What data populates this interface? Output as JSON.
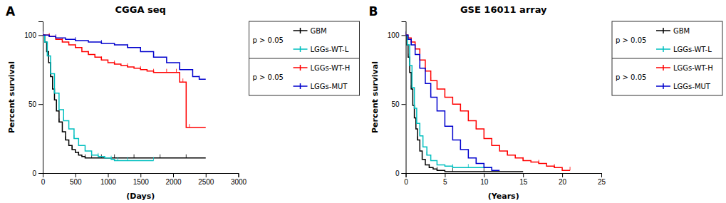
{
  "chart_data": [
    {
      "type": "step",
      "title": "CGGA seq",
      "xlabel": "(Days)",
      "ylabel": "Percent survival",
      "xlim": [
        0,
        3000
      ],
      "ylim": [
        0,
        110
      ],
      "xticks": [
        0,
        500,
        1000,
        1500,
        2000,
        2500,
        3000
      ],
      "yticks": [
        0,
        50,
        100
      ],
      "grid": false,
      "legend": "right",
      "marker": "tick",
      "annotations": [
        "A",
        "p > 0.05",
        "p > 0.05"
      ],
      "series": [
        {
          "name": "GBM",
          "color": "#000000",
          "x": [
            0,
            30,
            60,
            90,
            120,
            150,
            180,
            210,
            250,
            300,
            350,
            400,
            450,
            500,
            550,
            600,
            650,
            700,
            750,
            800,
            900,
            1000,
            1100,
            1200,
            1400,
            1600,
            1800,
            2000,
            2200,
            2500
          ],
          "values": [
            100,
            95,
            88,
            80,
            70,
            61,
            53,
            45,
            37,
            30,
            24,
            20,
            17,
            15,
            13,
            12,
            11,
            11,
            11,
            11,
            11,
            11,
            11,
            11,
            11,
            11,
            11,
            11,
            11,
            11
          ]
        },
        {
          "name": "LGGs-WT-L",
          "color": "#00BFBF",
          "x": [
            0,
            30,
            70,
            120,
            180,
            250,
            320,
            400,
            480,
            550,
            650,
            750,
            850,
            950,
            1050,
            1100,
            1150,
            1200,
            1300,
            1500,
            1700
          ],
          "values": [
            100,
            95,
            85,
            72,
            58,
            46,
            38,
            32,
            25,
            20,
            16,
            13,
            12,
            11,
            10,
            9,
            9,
            9,
            9,
            9,
            9
          ]
        },
        {
          "name": "LGGs-WT-H",
          "color": "#FF0000",
          "x": [
            0,
            50,
            100,
            200,
            300,
            400,
            500,
            600,
            700,
            800,
            900,
            1000,
            1100,
            1200,
            1300,
            1400,
            1500,
            1600,
            1700,
            1800,
            1900,
            2000,
            2050,
            2100,
            2150,
            2200,
            2250,
            2500
          ],
          "values": [
            100,
            100,
            99,
            97,
            95,
            93,
            91,
            88,
            86,
            84,
            82,
            80,
            79,
            78,
            77,
            76,
            75,
            74,
            73,
            73,
            73,
            73,
            73,
            66,
            66,
            33,
            33,
            33
          ]
        },
        {
          "name": "LGGs-MUT",
          "color": "#0000CD",
          "x": [
            0,
            100,
            200,
            350,
            500,
            700,
            900,
            1100,
            1300,
            1500,
            1700,
            1900,
            2100,
            2300,
            2400,
            2500
          ],
          "values": [
            100,
            99,
            98,
            97,
            96,
            95,
            94,
            93,
            91,
            88,
            84,
            80,
            75,
            70,
            68,
            68
          ]
        }
      ]
    },
    {
      "type": "step",
      "title": "GSE 16011 array",
      "xlabel": "(Years)",
      "ylabel": "Percent survival",
      "xlim": [
        0,
        25
      ],
      "ylim": [
        0,
        110
      ],
      "xticks": [
        0,
        5,
        10,
        15,
        20,
        25
      ],
      "yticks": [
        0,
        50,
        100
      ],
      "grid": false,
      "legend": "right",
      "marker": "tick",
      "annotations": [
        "B",
        "p > 0.05",
        "p > 0.05"
      ],
      "series": [
        {
          "name": "GBM",
          "color": "#000000",
          "x": [
            0,
            0.15,
            0.3,
            0.5,
            0.7,
            0.9,
            1.1,
            1.3,
            1.5,
            1.8,
            2.1,
            2.5,
            3.0,
            3.5,
            4.0,
            5.0,
            6.0,
            8.0,
            10.0,
            15.0
          ],
          "values": [
            100,
            93,
            84,
            73,
            61,
            49,
            40,
            32,
            24,
            16,
            10,
            6,
            4,
            3,
            2,
            1,
            1,
            1,
            1,
            1
          ]
        },
        {
          "name": "LGGs-WT-L",
          "color": "#00BFBF",
          "x": [
            0,
            0.2,
            0.5,
            0.8,
            1.1,
            1.4,
            1.8,
            2.2,
            2.7,
            3.2,
            4.0,
            5.0,
            6.0,
            7.0,
            8.0,
            9.0,
            10.0,
            11.0
          ],
          "values": [
            100,
            93,
            78,
            62,
            47,
            36,
            27,
            19,
            13,
            9,
            6,
            5,
            4,
            4,
            4,
            4,
            4,
            4
          ]
        },
        {
          "name": "LGGs-WT-H",
          "color": "#FF0000",
          "x": [
            0,
            0.3,
            0.7,
            1.2,
            1.8,
            2.5,
            3.2,
            4.0,
            5.0,
            6.0,
            7.0,
            8.0,
            9.0,
            10.0,
            11.0,
            12.0,
            13.0,
            14.0,
            15.0,
            16.0,
            17.0,
            18.0,
            19.0,
            20.0,
            21.0
          ],
          "values": [
            100,
            98,
            95,
            90,
            82,
            74,
            67,
            61,
            55,
            50,
            45,
            38,
            32,
            25,
            20,
            16,
            13,
            11,
            9,
            8,
            7,
            5,
            4,
            2,
            2
          ]
        },
        {
          "name": "LGGs-MUT",
          "color": "#0000CD",
          "x": [
            0,
            0.3,
            0.7,
            1.2,
            1.8,
            2.5,
            3.2,
            4.0,
            5.0,
            6.0,
            7.0,
            8.0,
            9.0,
            10.0,
            11.0,
            12.0
          ],
          "values": [
            100,
            97,
            93,
            86,
            76,
            65,
            55,
            45,
            34,
            24,
            17,
            11,
            7,
            4,
            2,
            2
          ]
        }
      ]
    }
  ]
}
